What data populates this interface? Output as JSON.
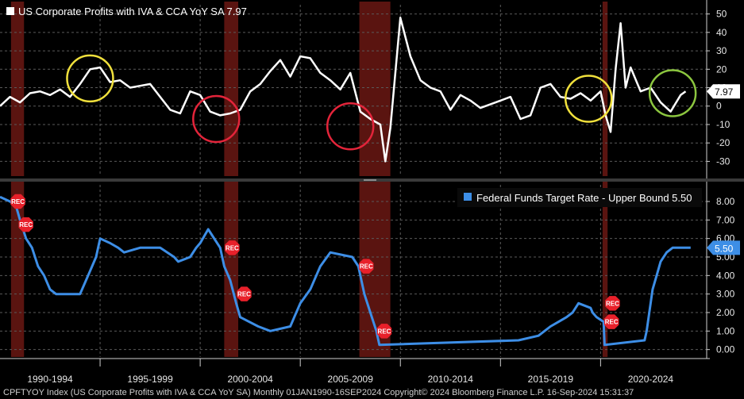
{
  "colors": {
    "background": "#000000",
    "grid": "#5a5a5a",
    "recession_fill": "#5a1410",
    "profits_line": "#ffffff",
    "fed_line": "#3d8ee6",
    "rec_marker": "#e8202a",
    "yellow_circle": "#f0e03c",
    "red_circle": "#e3243a",
    "green_circle": "#8cc63f"
  },
  "footer": {
    "text": "CPFTYOY Index (US Corporate Profits with IVA & CCA YoY SA)  Monthly 01JAN1990-16SEP2024 Copyright© 2024 Bloomberg Finance L.P. 16-Sep-2024 15:31:37"
  },
  "rec_label": "REC",
  "chart_data": [
    {
      "type": "line",
      "title": "US Corporate Profits with IVA & CCA YoY SA 7.97",
      "legend_position": "top-left",
      "grid": true,
      "ylim": [
        -38,
        55
      ],
      "yticks": [
        50,
        40,
        30,
        20,
        10,
        0,
        -10,
        -20,
        -30
      ],
      "ytick_labels": [
        "50",
        "40",
        "30",
        "20",
        "10",
        "0",
        "-10",
        "-20",
        "-30"
      ],
      "last_value_label": "7.97",
      "last_value": 7.97,
      "series": [
        {
          "name": "US Corporate Profits with IVA & CCA YoY SA",
          "x": [
            1990.0,
            1990.5,
            1991.0,
            1991.5,
            1992.0,
            1992.5,
            1993.0,
            1993.5,
            1994.0,
            1994.5,
            1995.0,
            1995.5,
            1996.0,
            1996.5,
            1997.0,
            1997.5,
            1998.0,
            1998.5,
            1999.0,
            1999.5,
            2000.0,
            2000.5,
            2001.0,
            2001.5,
            2002.0,
            2002.5,
            2003.0,
            2003.5,
            2004.0,
            2004.5,
            2005.0,
            2005.5,
            2006.0,
            2006.5,
            2007.0,
            2007.5,
            2008.0,
            2008.5,
            2009.0,
            2009.25,
            2009.5,
            2010.0,
            2010.5,
            2011.0,
            2011.5,
            2012.0,
            2012.5,
            2013.0,
            2013.5,
            2014.0,
            2014.5,
            2015.0,
            2015.5,
            2016.0,
            2016.5,
            2017.0,
            2017.5,
            2018.0,
            2018.5,
            2019.0,
            2019.5,
            2020.0,
            2020.25,
            2020.5,
            2020.75,
            2021.0,
            2021.25,
            2021.5,
            2022.0,
            2022.5,
            2023.0,
            2023.5,
            2024.0,
            2024.25
          ],
          "values": [
            0,
            5,
            2,
            7,
            8,
            6,
            9,
            5,
            12,
            20,
            21,
            13,
            14,
            10,
            11,
            12,
            5,
            -2,
            -4,
            8,
            6,
            -3,
            -5,
            -4,
            -2,
            8,
            12,
            19,
            25,
            16,
            27,
            26,
            18,
            14,
            9,
            18,
            -3,
            -7,
            -10,
            -30,
            -12,
            48,
            27,
            14,
            10,
            8,
            -2,
            6,
            3,
            -1,
            1,
            3,
            5,
            -7,
            -5,
            10,
            12,
            5,
            4,
            7,
            3,
            8,
            -5,
            -14,
            20,
            45,
            10,
            21,
            8,
            10,
            2,
            -3,
            6,
            8
          ]
        }
      ],
      "annotations": [
        {
          "shape": "circle",
          "color": "yellow",
          "x": 1994.5,
          "y": 15
        },
        {
          "shape": "circle",
          "color": "red",
          "x": 2000.8,
          "y": -7
        },
        {
          "shape": "circle",
          "color": "red",
          "x": 2007.5,
          "y": -11
        },
        {
          "shape": "circle",
          "color": "yellow",
          "x": 2019.4,
          "y": 4
        },
        {
          "shape": "circle",
          "color": "green",
          "x": 2023.6,
          "y": 7
        }
      ]
    },
    {
      "type": "line",
      "title": "Federal Funds Target Rate - Upper Bound 5.50",
      "legend_position": "top-right",
      "grid": true,
      "ylim": [
        -0.4,
        8.9
      ],
      "yticks": [
        8,
        7,
        6,
        5,
        4,
        3,
        2,
        1,
        0
      ],
      "ytick_labels": [
        "8.00",
        "7.00",
        "6.00",
        "5.00",
        "4.00",
        "3.00",
        "2.00",
        "1.00",
        "0.00"
      ],
      "last_value_label": "5.50",
      "last_value": 5.5,
      "series": [
        {
          "name": "Federal Funds Target Rate - Upper Bound",
          "x": [
            1990.0,
            1990.5,
            1990.8,
            1991.0,
            1991.3,
            1991.6,
            1991.9,
            1992.2,
            1992.5,
            1992.8,
            1993.5,
            1994.0,
            1994.2,
            1994.5,
            1994.8,
            1995.0,
            1995.5,
            1995.9,
            1996.2,
            1997.0,
            1998.0,
            1998.7,
            1998.9,
            1999.5,
            1999.8,
            2000.0,
            2000.4,
            2001.0,
            2001.2,
            2001.5,
            2001.8,
            2002.0,
            2002.9,
            2003.5,
            2004.5,
            2004.7,
            2005.0,
            2005.5,
            2006.0,
            2006.5,
            2007.6,
            2007.9,
            2008.2,
            2008.5,
            2008.8,
            2008.95,
            2015.9,
            2016.9,
            2017.2,
            2017.5,
            2017.9,
            2018.3,
            2018.6,
            2018.9,
            2019.5,
            2019.6,
            2019.8,
            2020.15,
            2020.2,
            2022.2,
            2022.3,
            2022.5,
            2022.6,
            2022.8,
            2023.0,
            2023.3,
            2023.6,
            2024.5
          ],
          "values": [
            8.25,
            8.0,
            7.75,
            7.0,
            6.0,
            5.5,
            4.5,
            4.0,
            3.25,
            3.0,
            3.0,
            3.0,
            3.5,
            4.25,
            5.0,
            6.0,
            5.75,
            5.5,
            5.25,
            5.5,
            5.5,
            5.0,
            4.75,
            5.0,
            5.5,
            5.75,
            6.5,
            5.5,
            4.5,
            3.75,
            2.5,
            1.75,
            1.25,
            1.0,
            1.25,
            1.75,
            2.5,
            3.25,
            4.5,
            5.25,
            5.0,
            4.5,
            3.0,
            2.0,
            1.0,
            0.25,
            0.5,
            0.75,
            1.0,
            1.25,
            1.5,
            1.75,
            2.0,
            2.5,
            2.25,
            2.0,
            1.75,
            1.5,
            0.25,
            0.5,
            1.0,
            2.5,
            3.25,
            4.0,
            4.75,
            5.25,
            5.5,
            5.5
          ]
        }
      ],
      "rec_markers": [
        {
          "x": 1990.5,
          "y": 8.0
        },
        {
          "x": 1990.9,
          "y": 6.75
        },
        {
          "x": 2001.2,
          "y": 5.5
        },
        {
          "x": 2001.8,
          "y": 3.0
        },
        {
          "x": 2007.9,
          "y": 4.5
        },
        {
          "x": 2008.8,
          "y": 1.0
        },
        {
          "x": 2020.15,
          "y": 1.5
        },
        {
          "x": 2020.2,
          "y": 2.5
        }
      ]
    }
  ],
  "x_axis": {
    "range": [
      1990,
      2025.3
    ],
    "period_labels": [
      "1990-1994",
      "1995-1999",
      "2000-2004",
      "2005-2009",
      "2010-2014",
      "2015-2019",
      "2020-2024"
    ],
    "period_starts": [
      1990,
      1995,
      2000,
      2005,
      2010,
      2015,
      2020
    ]
  },
  "recessions": [
    {
      "start": 1990.55,
      "end": 1991.2
    },
    {
      "start": 2001.2,
      "end": 2001.9
    },
    {
      "start": 2007.95,
      "end": 2009.5
    },
    {
      "start": 2020.1,
      "end": 2020.35
    }
  ]
}
